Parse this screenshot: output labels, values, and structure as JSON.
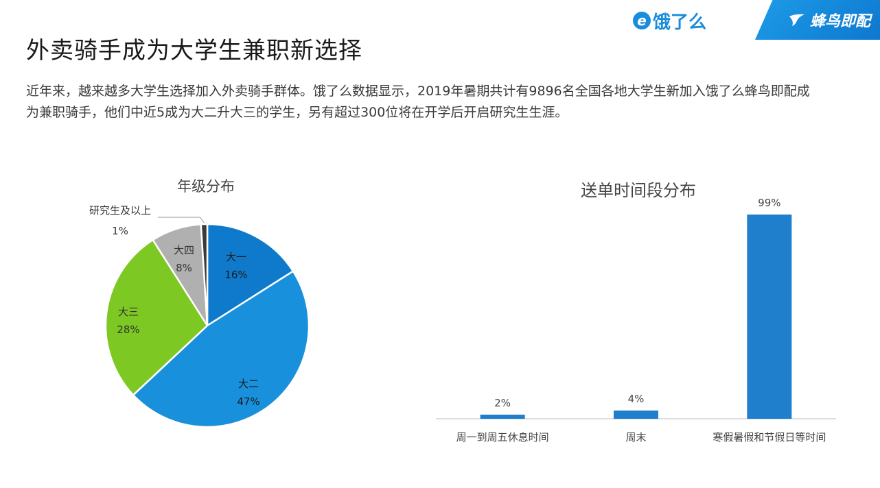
{
  "title": "外卖骑手成为大学生兼职新选择",
  "description": "近年来，越来越多大学生选择加入外卖骑手群体。饿了么数据显示，2019年暑期共计有9896名全国各地大学生新加入饿了么蜂鸟即配成为兼职骑手，他们中近5成为大二升大三的学生，另有超过300位将在开学后开启研究生生涯。",
  "brand": {
    "eleme": "饿了么",
    "fengniao": "蜂鸟即配",
    "accent": "#1a8cdc"
  },
  "chart_data": [
    {
      "type": "pie",
      "title": "年级分布",
      "slices": [
        {
          "label": "大一",
          "value": 16,
          "pct_label": "16%",
          "color": "#0f7acc"
        },
        {
          "label": "大二",
          "value": 47,
          "pct_label": "47%",
          "color": "#1890dc"
        },
        {
          "label": "大三",
          "value": 28,
          "pct_label": "28%",
          "color": "#7dc822"
        },
        {
          "label": "大四",
          "value": 8,
          "pct_label": "8%",
          "color": "#b0b0b0"
        },
        {
          "label": "研究生及以上",
          "value": 1,
          "pct_label": "1%",
          "color": "#3a3a3a"
        }
      ]
    },
    {
      "type": "bar",
      "title": "送单时间段分布",
      "categories": [
        "周一到周五休息时间",
        "周末",
        "寒假暑假和节假日等时间"
      ],
      "values": [
        2,
        4,
        99
      ],
      "value_labels": [
        "2%",
        "4%",
        "99%"
      ],
      "ylim": [
        0,
        100
      ],
      "color": "#1f7fcd"
    }
  ]
}
